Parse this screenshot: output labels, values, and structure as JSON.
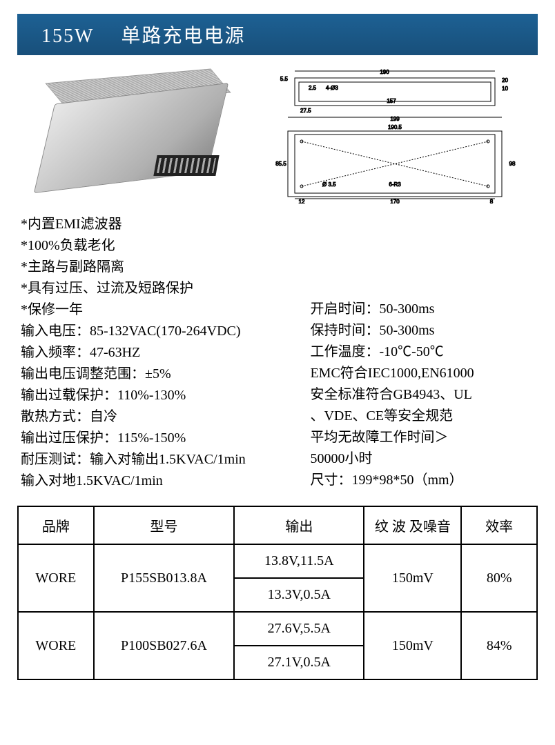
{
  "header": {
    "wattage": "155W",
    "title": "单路充电电源",
    "bg_color": "#1a5a8a",
    "text_color": "#ffffff"
  },
  "drawing": {
    "top_width": "190",
    "top_inner": "157",
    "top_left": "5.5",
    "top_right_a": "20",
    "top_right_b": "10",
    "top_left_bot": "27.5",
    "corner": "2.5",
    "hole": "4-Ø3",
    "main_width": "199",
    "main_width_inner": "190.5",
    "main_height": "85.5",
    "main_height_inner": "98",
    "inner_left": "12",
    "inner_center": "170",
    "inner_right": "8",
    "left_hole": "Ø 3.5",
    "slot": "6-R3"
  },
  "features": [
    "*内置EMI滤波器",
    "*100%负载老化",
    "*主路与副路隔离",
    "*具有过压、过流及短路保护",
    "*保修一年"
  ],
  "specs_left": [
    "输入电压：85-132VAC(170-264VDC)",
    "输入频率：47-63HZ",
    "输出电压调整范围：±5%",
    "输出过载保护：110%-130%",
    "散热方式：自冷",
    "输出过压保护：115%-150%",
    "耐压测试：输入对输出1.5KVAC/1min",
    "输入对地1.5KVAC/1min"
  ],
  "specs_right": [
    "开启时间：50-300ms",
    "保持时间：50-300ms",
    "工作温度：-10℃-50℃",
    "EMC符合IEC1000,EN61000",
    "安全标准符合GB4943、UL",
    "、VDE、CE等安全规范",
    "平均无故障工作时间＞",
    "50000小时",
    "尺寸：199*98*50（mm）"
  ],
  "table": {
    "headers": {
      "brand": "品牌",
      "model": "型号",
      "output": "输出",
      "ripple": "纹 波 及噪音",
      "efficiency": "效率"
    },
    "rows": [
      {
        "brand": "WORE",
        "model": "P155SB013.8A",
        "outputs": [
          "13.8V,11.5A",
          "13.3V,0.5A"
        ],
        "ripple": "150mV",
        "efficiency": "80%"
      },
      {
        "brand": "WORE",
        "model": "P100SB027.6A",
        "outputs": [
          "27.6V,5.5A",
          "27.1V,0.5A"
        ],
        "ripple": "150mV",
        "efficiency": "84%"
      }
    ]
  }
}
